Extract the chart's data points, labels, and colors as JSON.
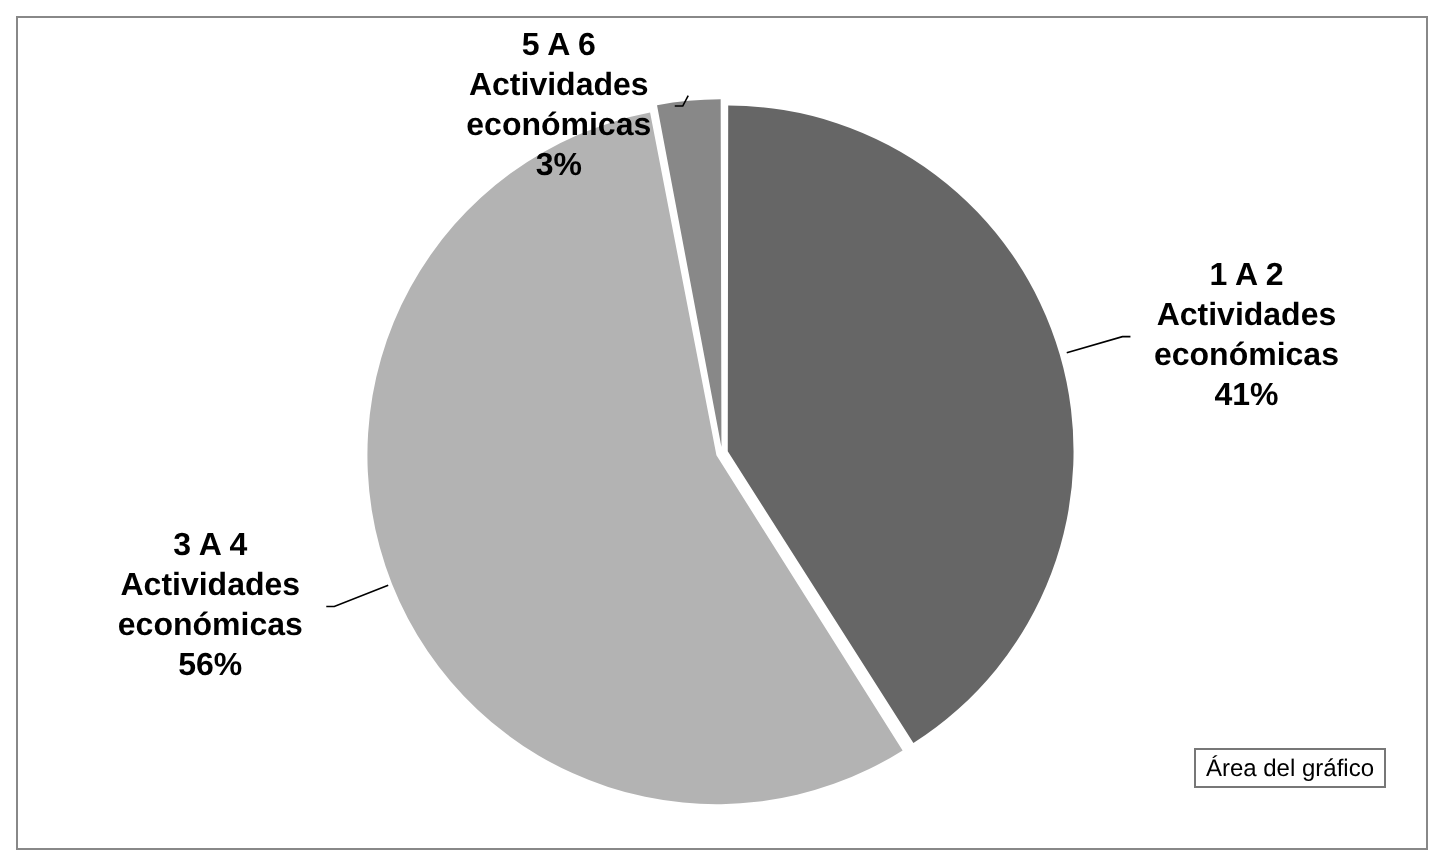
{
  "chart_data": {
    "type": "pie",
    "categories": [
      "1 A 2 Actividades económicas",
      "3 A 4 Actividades económicas",
      "5 A 6 Actividades económicas"
    ],
    "values": [
      41,
      56,
      3
    ],
    "colors": [
      "#666666",
      "#b3b3b3",
      "#888888"
    ],
    "value_labels": [
      "41%",
      "56%",
      "3%"
    ],
    "legend": false,
    "annotations": [
      "Área del gráfico"
    ]
  }
}
